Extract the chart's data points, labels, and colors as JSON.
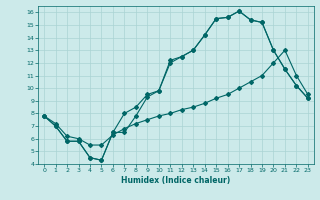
{
  "title": "",
  "xlabel": "Humidex (Indice chaleur)",
  "bg_color": "#cceaea",
  "line_color": "#006666",
  "grid_color": "#aad4d4",
  "xlim": [
    -0.5,
    23.5
  ],
  "ylim": [
    4,
    16.5
  ],
  "xticks": [
    0,
    1,
    2,
    3,
    4,
    5,
    6,
    7,
    8,
    9,
    10,
    11,
    12,
    13,
    14,
    15,
    16,
    17,
    18,
    19,
    20,
    21,
    22,
    23
  ],
  "yticks": [
    4,
    5,
    6,
    7,
    8,
    9,
    10,
    11,
    12,
    13,
    14,
    15,
    16
  ],
  "line1_x": [
    0,
    1,
    2,
    3,
    4,
    5,
    6,
    7,
    8,
    9,
    10,
    11,
    12,
    13,
    14,
    15,
    16,
    17,
    18,
    19,
    20,
    21,
    22,
    23
  ],
  "line1_y": [
    7.8,
    7.0,
    5.8,
    5.8,
    4.5,
    4.3,
    6.5,
    8.0,
    8.5,
    9.5,
    9.8,
    12.2,
    12.5,
    13.0,
    14.2,
    15.5,
    15.6,
    16.1,
    15.4,
    15.2,
    13.0,
    11.5,
    10.2,
    9.2
  ],
  "line2_x": [
    0,
    1,
    2,
    3,
    4,
    5,
    6,
    7,
    8,
    9,
    10,
    11,
    12,
    13,
    14,
    15,
    16,
    17,
    18,
    19,
    20,
    21,
    22,
    23
  ],
  "line2_y": [
    7.8,
    7.0,
    5.8,
    5.8,
    4.5,
    4.3,
    6.5,
    6.5,
    7.8,
    9.3,
    9.8,
    12.0,
    12.5,
    13.0,
    14.2,
    15.5,
    15.6,
    16.1,
    15.4,
    15.2,
    13.0,
    11.5,
    10.2,
    9.2
  ],
  "line3_x": [
    0,
    1,
    2,
    3,
    4,
    5,
    6,
    7,
    8,
    9,
    10,
    11,
    12,
    13,
    14,
    15,
    16,
    17,
    18,
    19,
    20,
    21,
    22,
    23
  ],
  "line3_y": [
    7.8,
    7.2,
    6.2,
    6.0,
    5.5,
    5.5,
    6.3,
    6.8,
    7.2,
    7.5,
    7.8,
    8.0,
    8.3,
    8.5,
    8.8,
    9.2,
    9.5,
    10.0,
    10.5,
    11.0,
    12.0,
    13.0,
    11.0,
    9.5
  ]
}
